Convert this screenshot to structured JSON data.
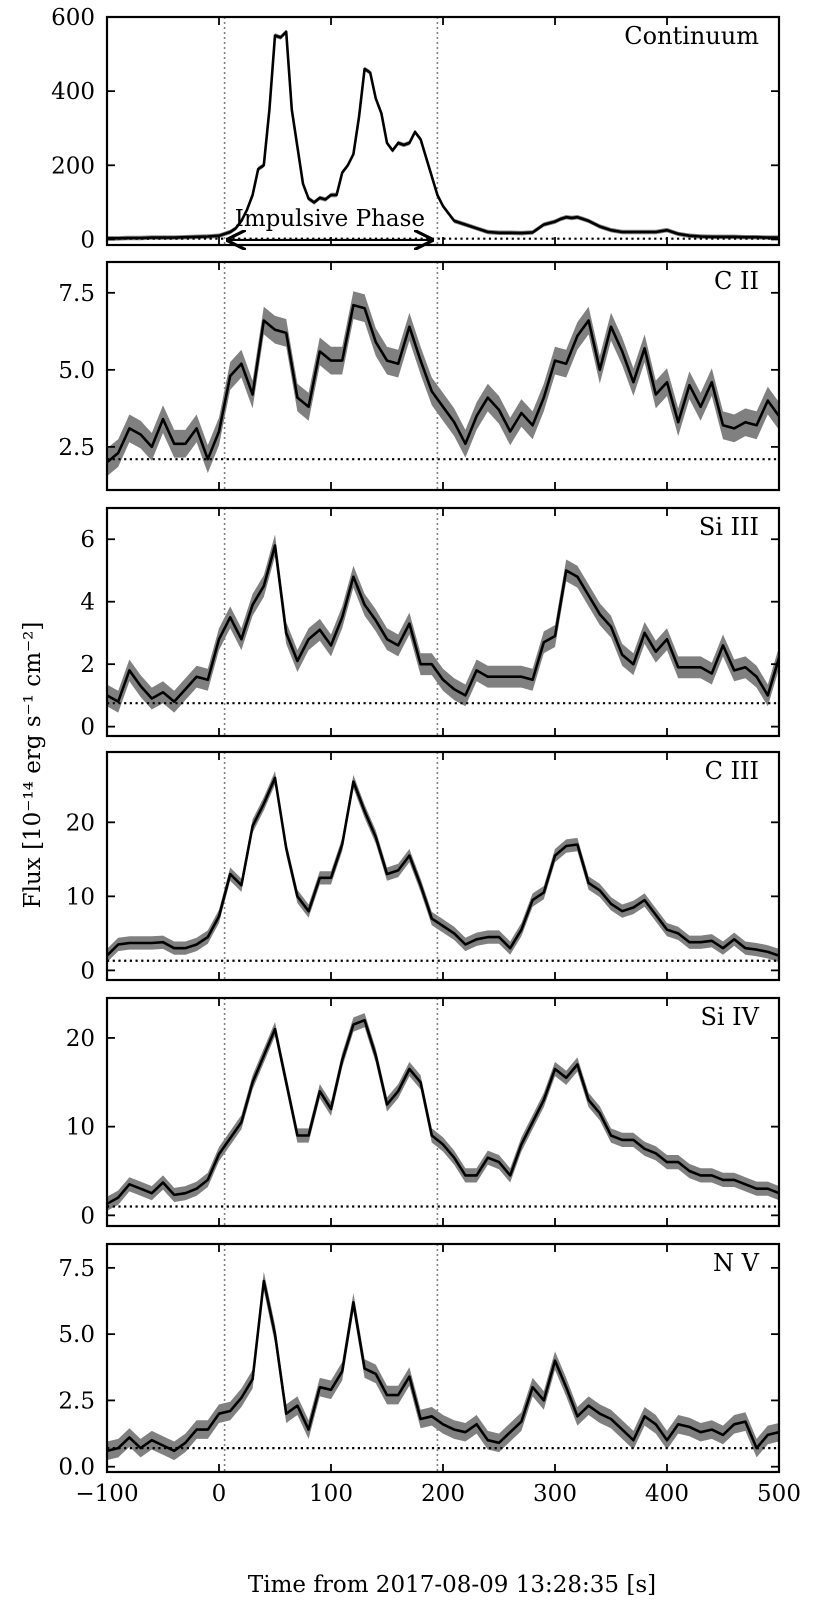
{
  "figure": {
    "xlabel": "Time from 2017-08-09 13:28:35 [s]",
    "ylabel": "Flux [10⁻¹⁴ erg s⁻¹ cm⁻²]",
    "xlim": [
      -100,
      500
    ],
    "xticks": [
      -100,
      0,
      100,
      200,
      300,
      400,
      500
    ],
    "xticklabels": [
      "−100",
      "0",
      "100",
      "200",
      "300",
      "400",
      "500"
    ],
    "vlines": [
      5,
      195
    ],
    "annotation": {
      "text": "Impulsive Phase",
      "from": 8,
      "to": 190
    },
    "colors": {
      "line": "#000000",
      "band": "#808080",
      "vline": "#808080"
    }
  },
  "chart_data": [
    {
      "type": "line",
      "label": "Continuum",
      "ylim": [
        -15,
        600
      ],
      "yticks": [
        0,
        200,
        400,
        600
      ],
      "yticklabels": [
        "0",
        "200",
        "400",
        "600"
      ],
      "baseline": 2,
      "band": 6,
      "x": [
        -100,
        -90,
        -80,
        -70,
        -60,
        -50,
        -40,
        -30,
        -20,
        -10,
        0,
        5,
        10,
        15,
        20,
        25,
        30,
        35,
        40,
        45,
        50,
        55,
        60,
        65,
        70,
        75,
        80,
        85,
        90,
        95,
        100,
        105,
        110,
        115,
        120,
        125,
        130,
        135,
        140,
        145,
        150,
        155,
        160,
        165,
        170,
        175,
        180,
        185,
        190,
        195,
        200,
        210,
        220,
        230,
        240,
        250,
        260,
        270,
        280,
        290,
        300,
        305,
        310,
        315,
        320,
        325,
        330,
        340,
        350,
        360,
        370,
        380,
        390,
        400,
        410,
        420,
        430,
        440,
        450,
        460,
        470,
        480,
        490,
        500
      ],
      "y": [
        3,
        3,
        4,
        4,
        5,
        5,
        5,
        6,
        7,
        8,
        10,
        15,
        20,
        30,
        50,
        80,
        120,
        190,
        200,
        350,
        550,
        545,
        560,
        350,
        250,
        150,
        110,
        100,
        112,
        108,
        120,
        120,
        180,
        200,
        230,
        330,
        460,
        450,
        380,
        340,
        260,
        240,
        260,
        255,
        260,
        290,
        270,
        220,
        170,
        120,
        90,
        50,
        40,
        30,
        20,
        18,
        18,
        17,
        19,
        40,
        48,
        55,
        60,
        58,
        60,
        55,
        50,
        35,
        25,
        20,
        20,
        20,
        20,
        25,
        15,
        10,
        8,
        7,
        7,
        7,
        6,
        6,
        5,
        5
      ]
    },
    {
      "type": "line",
      "label": "C II",
      "ylim": [
        1.1,
        8.5
      ],
      "yticks": [
        2.5,
        5.0,
        7.5
      ],
      "yticklabels": [
        "2.5",
        "5.0",
        "7.5"
      ],
      "baseline": 2.1,
      "band": 0.45,
      "x": [
        -100,
        -90,
        -80,
        -70,
        -60,
        -50,
        -40,
        -30,
        -20,
        -10,
        0,
        10,
        20,
        30,
        40,
        50,
        60,
        70,
        80,
        90,
        100,
        110,
        120,
        130,
        140,
        150,
        160,
        170,
        180,
        190,
        200,
        210,
        220,
        230,
        240,
        250,
        260,
        270,
        280,
        290,
        300,
        310,
        320,
        330,
        340,
        350,
        360,
        370,
        380,
        390,
        400,
        410,
        420,
        430,
        440,
        450,
        460,
        470,
        480,
        490,
        500
      ],
      "y": [
        2.0,
        2.3,
        3.1,
        2.9,
        2.5,
        3.4,
        2.6,
        2.6,
        3.1,
        2.1,
        3.0,
        4.8,
        5.2,
        4.2,
        6.6,
        6.3,
        6.2,
        4.1,
        3.8,
        5.6,
        5.3,
        5.3,
        7.1,
        7.0,
        5.9,
        5.3,
        5.2,
        6.4,
        5.3,
        4.3,
        3.8,
        3.3,
        2.6,
        3.5,
        4.1,
        3.7,
        3.0,
        3.6,
        3.2,
        4.1,
        5.3,
        5.2,
        6.1,
        6.6,
        5.0,
        6.4,
        5.6,
        4.6,
        5.7,
        4.2,
        4.6,
        3.3,
        4.5,
        3.8,
        4.6,
        3.2,
        3.1,
        3.3,
        3.2,
        4.0,
        3.5
      ]
    },
    {
      "type": "line",
      "label": "Si III",
      "ylim": [
        -0.3,
        7.0
      ],
      "yticks": [
        0,
        2,
        4,
        6
      ],
      "yticklabels": [
        "0",
        "2",
        "4",
        "6"
      ],
      "baseline": 0.75,
      "band": 0.35,
      "x": [
        -100,
        -90,
        -80,
        -70,
        -60,
        -50,
        -40,
        -30,
        -20,
        -10,
        0,
        10,
        20,
        30,
        40,
        50,
        60,
        70,
        80,
        90,
        100,
        110,
        120,
        130,
        140,
        150,
        160,
        170,
        180,
        190,
        200,
        210,
        220,
        230,
        240,
        250,
        260,
        270,
        280,
        290,
        300,
        310,
        320,
        330,
        340,
        350,
        360,
        370,
        380,
        390,
        400,
        410,
        420,
        430,
        440,
        450,
        460,
        470,
        480,
        490,
        500
      ],
      "y": [
        1.0,
        0.8,
        1.8,
        1.3,
        0.9,
        1.1,
        0.8,
        1.2,
        1.6,
        1.5,
        2.8,
        3.5,
        2.8,
        3.9,
        4.5,
        5.8,
        3.0,
        2.1,
        2.8,
        3.1,
        2.6,
        3.5,
        4.8,
        3.9,
        3.4,
        2.8,
        2.6,
        3.3,
        2.0,
        2.0,
        1.5,
        1.2,
        1.0,
        1.8,
        1.6,
        1.6,
        1.6,
        1.6,
        1.5,
        2.7,
        2.9,
        5.0,
        4.8,
        4.2,
        3.6,
        3.2,
        2.3,
        2.0,
        3.0,
        2.4,
        2.8,
        1.9,
        1.9,
        1.9,
        1.7,
        2.6,
        1.8,
        1.9,
        1.6,
        1.0,
        2.2
      ]
    },
    {
      "type": "line",
      "label": "C III",
      "ylim": [
        -1.3,
        29.5
      ],
      "yticks": [
        0,
        10,
        20
      ],
      "yticklabels": [
        "0",
        "10",
        "20"
      ],
      "baseline": 1.3,
      "band": 0.9,
      "x": [
        -100,
        -90,
        -80,
        -70,
        -60,
        -50,
        -40,
        -30,
        -20,
        -10,
        0,
        10,
        20,
        30,
        40,
        50,
        60,
        70,
        80,
        90,
        100,
        110,
        120,
        130,
        140,
        150,
        160,
        170,
        180,
        190,
        200,
        210,
        220,
        230,
        240,
        250,
        260,
        270,
        280,
        290,
        300,
        310,
        320,
        330,
        340,
        350,
        360,
        370,
        380,
        390,
        400,
        410,
        420,
        430,
        440,
        450,
        460,
        470,
        480,
        490,
        500
      ],
      "y": [
        2.0,
        3.5,
        3.7,
        3.7,
        3.7,
        3.8,
        3.0,
        3.0,
        3.5,
        4.5,
        7.3,
        13.0,
        11.5,
        19.5,
        22.5,
        26.0,
        16.5,
        10.0,
        8.0,
        12.5,
        12.5,
        17.0,
        25.5,
        21.5,
        18.0,
        13.0,
        13.5,
        15.5,
        11.5,
        7.0,
        6.0,
        5.0,
        3.5,
        4.2,
        4.5,
        4.5,
        3.0,
        5.5,
        9.5,
        10.5,
        15.5,
        16.8,
        17.0,
        11.8,
        10.8,
        9.0,
        8.0,
        8.5,
        9.5,
        7.5,
        5.5,
        5.0,
        3.8,
        3.8,
        4.0,
        3.0,
        4.2,
        3.0,
        2.8,
        2.5,
        2.0
      ]
    },
    {
      "type": "line",
      "label": "Si IV",
      "ylim": [
        -1.2,
        24.5
      ],
      "yticks": [
        0,
        10,
        20
      ],
      "yticklabels": [
        "0",
        "10",
        "20"
      ],
      "baseline": 1.0,
      "band": 0.8,
      "x": [
        -100,
        -90,
        -80,
        -70,
        -60,
        -50,
        -40,
        -30,
        -20,
        -10,
        0,
        10,
        20,
        30,
        40,
        50,
        60,
        70,
        80,
        90,
        100,
        110,
        120,
        130,
        140,
        150,
        160,
        170,
        180,
        190,
        200,
        210,
        220,
        230,
        240,
        250,
        260,
        270,
        280,
        290,
        300,
        310,
        320,
        330,
        340,
        350,
        360,
        370,
        380,
        390,
        400,
        410,
        420,
        430,
        440,
        450,
        460,
        470,
        480,
        490,
        500
      ],
      "y": [
        1.3,
        2.0,
        3.5,
        3.0,
        2.5,
        3.7,
        2.3,
        2.5,
        3.0,
        4.0,
        6.9,
        8.7,
        10.5,
        15.0,
        18.0,
        21.0,
        15.0,
        9.0,
        9.0,
        14.0,
        12.0,
        17.5,
        21.5,
        22.0,
        18.0,
        12.5,
        14.0,
        16.5,
        15.0,
        9.0,
        8.0,
        6.5,
        4.5,
        4.5,
        6.5,
        6.0,
        4.5,
        8.0,
        10.5,
        13.0,
        16.5,
        15.5,
        17.0,
        13.0,
        11.5,
        9.0,
        8.5,
        8.5,
        7.5,
        7.0,
        6.0,
        6.0,
        5.0,
        4.5,
        4.5,
        4.0,
        4.0,
        3.5,
        3.0,
        3.0,
        2.5
      ]
    },
    {
      "type": "line",
      "label": "N V",
      "ylim": [
        -0.2,
        8.4
      ],
      "yticks": [
        0.0,
        2.5,
        5.0,
        7.5
      ],
      "yticklabels": [
        "0.0",
        "2.5",
        "5.0",
        "7.5"
      ],
      "baseline": 0.7,
      "band": 0.35,
      "x": [
        -100,
        -90,
        -80,
        -70,
        -60,
        -50,
        -40,
        -30,
        -20,
        -10,
        0,
        10,
        20,
        30,
        40,
        50,
        60,
        70,
        80,
        90,
        100,
        110,
        120,
        130,
        140,
        150,
        160,
        170,
        180,
        190,
        200,
        210,
        220,
        230,
        240,
        250,
        260,
        270,
        280,
        290,
        300,
        310,
        320,
        330,
        340,
        350,
        360,
        370,
        380,
        390,
        400,
        410,
        420,
        430,
        440,
        450,
        460,
        470,
        480,
        490,
        500
      ],
      "y": [
        0.6,
        0.7,
        1.1,
        0.7,
        1.0,
        0.8,
        0.6,
        0.9,
        1.4,
        1.4,
        2.0,
        2.1,
        2.6,
        3.3,
        7.0,
        5.0,
        2.0,
        2.3,
        1.4,
        3.0,
        2.9,
        3.6,
        6.2,
        3.7,
        3.5,
        2.7,
        2.7,
        3.4,
        1.8,
        1.9,
        1.6,
        1.4,
        1.3,
        1.6,
        1.0,
        0.9,
        1.3,
        1.7,
        3.0,
        2.5,
        4.0,
        3.0,
        1.9,
        2.3,
        2.0,
        1.8,
        1.4,
        1.0,
        1.9,
        1.6,
        1.0,
        1.6,
        1.5,
        1.3,
        1.4,
        1.2,
        1.6,
        1.7,
        0.7,
        1.2,
        1.3
      ]
    }
  ]
}
